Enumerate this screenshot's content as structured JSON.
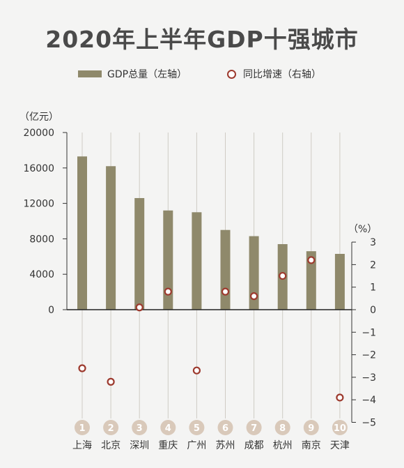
{
  "title": "2020年上半年GDP十强城市",
  "chart_data": {
    "type": "bar",
    "categories": [
      "上海",
      "北京",
      "深圳",
      "重庆",
      "广州",
      "苏州",
      "成都",
      "杭州",
      "南京",
      "天津"
    ],
    "ranks": [
      "1",
      "2",
      "3",
      "4",
      "5",
      "6",
      "7",
      "8",
      "9",
      "10"
    ],
    "series": [
      {
        "name": "GDP总量（左轴）",
        "type": "bar",
        "axis": "left",
        "values": [
          17300,
          16200,
          12600,
          11200,
          11000,
          9000,
          8300,
          7400,
          6600,
          6300
        ]
      },
      {
        "name": "同比增速（右轴）",
        "type": "scatter",
        "axis": "right",
        "values": [
          -2.6,
          -3.2,
          0.1,
          0.8,
          -2.7,
          0.8,
          0.6,
          1.5,
          2.2,
          -3.9
        ]
      }
    ],
    "left_axis": {
      "unit": "（亿元）",
      "ticks": [
        0,
        4000,
        8000,
        12000,
        16000,
        20000
      ],
      "ylim": [
        0,
        20000
      ]
    },
    "right_axis": {
      "unit": "（%）",
      "ticks": [
        3,
        2,
        1,
        0,
        -1,
        -2,
        -3,
        -4,
        -5
      ],
      "tick_labels": [
        "3",
        "2",
        "1",
        "0",
        "−1",
        "−2",
        "−3",
        "−4",
        "−5"
      ],
      "ylim": [
        -5,
        3
      ]
    },
    "legend_position": "top",
    "colors": {
      "bar": "#8f896b",
      "marker": "#9d3a2e",
      "rank_circle": "#d9c9ba",
      "guide": "#cfcbc4",
      "rank_text": "#ffffff"
    }
  }
}
